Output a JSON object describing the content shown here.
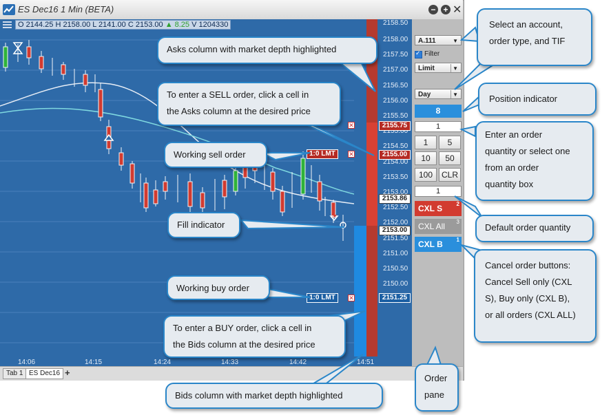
{
  "window": {
    "title": "ES Dec16 1 Min (BETA)",
    "ohlc": {
      "open": "O 2144.25",
      "high": "H 2158.00",
      "low": "L 2141.00",
      "close": "C 2153.00",
      "change": "▲ 8.25",
      "volume": "V 1204330"
    }
  },
  "price_axis": [
    "2158.00",
    "2157.50",
    "2157.00",
    "2156.50",
    "2156.00",
    "2155.50",
    "2155.00",
    "2154.50",
    "2154.00",
    "2153.50",
    "2153.00",
    "2152.50",
    "2152.00",
    "2151.50",
    "2151.00",
    "2150.50",
    "2150.00"
  ],
  "price_partial": {
    "top": "2158.50"
  },
  "time_axis": [
    "14:06",
    "14:15",
    "14:24",
    "14:33",
    "14:42",
    "14:51"
  ],
  "markers": {
    "sell_price": "2155.75",
    "working_sell_price": "2155.00",
    "last_price": "2153.86",
    "fill_price": "2153.00",
    "working_buy_price": "2151.25",
    "sell_tag": "1:0 LMT",
    "buy_tag": "1:0 LMT",
    "cancel_x": "✕"
  },
  "order_pane": {
    "account": "A.111",
    "filter_label": "Filter",
    "order_type": "Limit",
    "tif": "Day",
    "position": "8",
    "quantity": "1",
    "qty_buttons": [
      "1",
      "5",
      "10",
      "50",
      "100",
      "CLR"
    ],
    "default_qty": "1",
    "cxl_sell": "CXL S",
    "cxl_sell_count": "2",
    "cxl_all": "CXL All",
    "cxl_all_count": "3",
    "cxl_buy": "CXL B",
    "cxl_buy_count": "1"
  },
  "tabs": [
    "Tab 1",
    "ES Dec16"
  ],
  "tab_add": "+",
  "callouts": {
    "asks": "Asks column with market depth highlighted",
    "sell_line1": "To enter a SELL order, click a cell in",
    "sell_line2": "the Asks column at the desired price",
    "working_sell": "Working sell order",
    "fill": "Fill indicator",
    "working_buy": "Working buy order",
    "buy_line1": "To enter a BUY order, click a cell in",
    "buy_line2": "the Bids column at the desired price",
    "bids": "Bids column with market depth highlighted",
    "select_line1": "Select an account,",
    "select_line2": "order type, and TIF",
    "position": "Position indicator",
    "qty_line1": "Enter an order",
    "qty_line2": "quantity or select one",
    "qty_line3": "from an order",
    "qty_line4": "quantity box",
    "default_qty": "Default order quantity",
    "cancel_line1": "Cancel order buttons:",
    "cancel_line2": "Cancel Sell only (CXL",
    "cancel_line3": "S), Buy only (CXL B),",
    "cancel_line4": "or all orders (CXL ALL)",
    "order_line1": "Order",
    "order_line2": "pane"
  },
  "colors": {
    "chart_bg": "#2e6aa8",
    "ask": "#b53a2f",
    "bid": "#2a8fdc",
    "callout_border": "#2a86c9"
  }
}
